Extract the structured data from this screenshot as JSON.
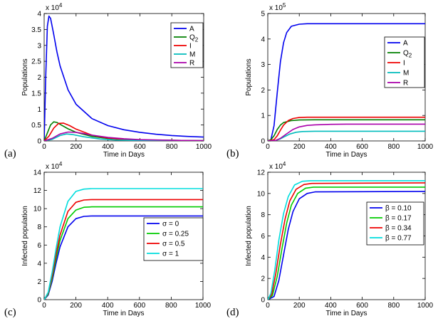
{
  "chart_data": [
    {
      "type": "line",
      "panel_label": "(a)",
      "xlabel": "Time in Days",
      "ylabel": "Populations",
      "multiplier_base": "x 10",
      "multiplier_exp": "4",
      "xlim": [
        0,
        1000
      ],
      "ylim": [
        0,
        4
      ],
      "xticks": [
        "0",
        "200",
        "400",
        "600",
        "800",
        "1000"
      ],
      "yticks": [
        "0",
        "0.5",
        "1",
        "1.5",
        "2",
        "2.5",
        "3",
        "3.5",
        "4"
      ],
      "legend_position": "top-right",
      "series": [
        {
          "name": "A",
          "name_sub": "",
          "color": "#0000ee",
          "x": [
            0,
            10,
            20,
            30,
            40,
            60,
            80,
            100,
            150,
            200,
            300,
            400,
            500,
            600,
            700,
            800,
            900,
            1000
          ],
          "y": [
            0,
            2.0,
            3.6,
            3.92,
            3.85,
            3.35,
            2.8,
            2.35,
            1.6,
            1.15,
            0.7,
            0.48,
            0.35,
            0.27,
            0.21,
            0.17,
            0.14,
            0.12
          ]
        },
        {
          "name": "Q",
          "name_sub": "2",
          "color": "#008000",
          "x": [
            0,
            20,
            40,
            60,
            80,
            100,
            150,
            200,
            300,
            400,
            500,
            600,
            800,
            1000
          ],
          "y": [
            0,
            0.25,
            0.5,
            0.6,
            0.58,
            0.52,
            0.38,
            0.27,
            0.14,
            0.08,
            0.05,
            0.03,
            0.02,
            0.01
          ]
        },
        {
          "name": "I",
          "name_sub": "",
          "color": "#ee0000",
          "x": [
            0,
            30,
            60,
            90,
            120,
            160,
            200,
            300,
            400,
            500,
            600,
            800,
            1000
          ],
          "y": [
            0,
            0.15,
            0.4,
            0.55,
            0.56,
            0.48,
            0.37,
            0.18,
            0.09,
            0.05,
            0.03,
            0.01,
            0.005
          ]
        },
        {
          "name": "M",
          "name_sub": "",
          "color": "#00bcbc",
          "x": [
            0,
            50,
            100,
            140,
            180,
            250,
            350,
            450,
            600,
            800,
            1000
          ],
          "y": [
            0,
            0.05,
            0.17,
            0.22,
            0.2,
            0.13,
            0.06,
            0.03,
            0.01,
            0.005,
            0.002
          ]
        },
        {
          "name": "R",
          "name_sub": "",
          "color": "#aa00aa",
          "x": [
            0,
            50,
            100,
            150,
            200,
            250,
            300,
            400,
            500,
            600,
            800,
            1000
          ],
          "y": [
            0,
            0.08,
            0.22,
            0.28,
            0.27,
            0.23,
            0.18,
            0.11,
            0.07,
            0.04,
            0.02,
            0.01
          ]
        }
      ]
    },
    {
      "type": "line",
      "panel_label": "(b)",
      "xlabel": "Time in Days",
      "ylabel": "Populations",
      "multiplier_base": "x 10",
      "multiplier_exp": "5",
      "xlim": [
        0,
        1000
      ],
      "ylim": [
        0,
        5
      ],
      "xticks": [
        "0",
        "200",
        "400",
        "600",
        "800",
        "1000"
      ],
      "yticks": [
        "0",
        "1",
        "2",
        "3",
        "4",
        "5"
      ],
      "legend_position": "top-right",
      "series": [
        {
          "name": "A",
          "name_sub": "",
          "color": "#0000ee",
          "x": [
            0,
            20,
            40,
            60,
            80,
            100,
            120,
            150,
            200,
            250,
            300,
            400,
            1000
          ],
          "y": [
            0,
            0.05,
            0.6,
            1.9,
            3.1,
            3.85,
            4.25,
            4.5,
            4.58,
            4.6,
            4.6,
            4.6,
            4.6
          ]
        },
        {
          "name": "Q",
          "name_sub": "2",
          "color": "#008000",
          "x": [
            0,
            20,
            40,
            60,
            80,
            100,
            150,
            200,
            300,
            1000
          ],
          "y": [
            0,
            0.05,
            0.2,
            0.45,
            0.62,
            0.72,
            0.8,
            0.82,
            0.83,
            0.83
          ]
        },
        {
          "name": "I",
          "name_sub": "",
          "color": "#ee0000",
          "x": [
            0,
            40,
            60,
            80,
            100,
            130,
            160,
            200,
            250,
            300,
            1000
          ],
          "y": [
            0,
            0.05,
            0.2,
            0.42,
            0.62,
            0.8,
            0.88,
            0.92,
            0.93,
            0.93,
            0.93
          ]
        },
        {
          "name": "M",
          "name_sub": "",
          "color": "#00bcbc",
          "x": [
            0,
            50,
            80,
            110,
            140,
            180,
            220,
            300,
            400,
            1000
          ],
          "y": [
            0,
            0.02,
            0.08,
            0.18,
            0.27,
            0.34,
            0.37,
            0.38,
            0.38,
            0.38
          ]
        },
        {
          "name": "R",
          "name_sub": "",
          "color": "#aa00aa",
          "x": [
            0,
            50,
            80,
            120,
            160,
            200,
            250,
            300,
            400,
            500,
            1000
          ],
          "y": [
            0,
            0.02,
            0.1,
            0.28,
            0.45,
            0.55,
            0.61,
            0.63,
            0.65,
            0.66,
            0.66
          ]
        }
      ]
    },
    {
      "type": "line",
      "panel_label": "(c)",
      "xlabel": "Time in Days",
      "ylabel": "Infected population",
      "multiplier_base": "x 10",
      "multiplier_exp": "4",
      "xlim": [
        0,
        1000
      ],
      "ylim": [
        0,
        14
      ],
      "xticks": [
        "0",
        "200",
        "400",
        "600",
        "800",
        "1000"
      ],
      "yticks": [
        "0",
        "2",
        "4",
        "6",
        "8",
        "10",
        "12",
        "14"
      ],
      "legend_position": "bottom-right",
      "series": [
        {
          "name": "σ = 0",
          "name_sub": "",
          "color": "#0000ee",
          "x": [
            0,
            25,
            50,
            75,
            100,
            150,
            200,
            250,
            300,
            400,
            1000
          ],
          "y": [
            0,
            0.5,
            2.0,
            4.0,
            5.8,
            8.0,
            8.9,
            9.15,
            9.2,
            9.2,
            9.2
          ]
        },
        {
          "name": "σ = 0.25",
          "name_sub": "",
          "color": "#00cc00",
          "x": [
            0,
            25,
            50,
            75,
            100,
            150,
            200,
            250,
            300,
            400,
            1000
          ],
          "y": [
            0,
            0.6,
            2.3,
            4.5,
            6.5,
            8.9,
            9.85,
            10.15,
            10.2,
            10.2,
            10.2
          ]
        },
        {
          "name": "σ = 0.5",
          "name_sub": "",
          "color": "#ee0000",
          "x": [
            0,
            25,
            50,
            75,
            100,
            150,
            200,
            250,
            300,
            400,
            1000
          ],
          "y": [
            0,
            0.7,
            2.6,
            5.0,
            7.1,
            9.7,
            10.7,
            10.95,
            11.0,
            11.0,
            11.0
          ]
        },
        {
          "name": "σ = 1",
          "name_sub": "",
          "color": "#00dddd",
          "x": [
            0,
            25,
            50,
            75,
            100,
            150,
            200,
            250,
            300,
            400,
            1000
          ],
          "y": [
            0,
            0.8,
            3.0,
            5.6,
            8.0,
            10.8,
            11.9,
            12.15,
            12.2,
            12.2,
            12.2
          ]
        }
      ]
    },
    {
      "type": "line",
      "panel_label": "(d)",
      "xlabel": "Time in Days",
      "ylabel": "Infected population",
      "multiplier_base": "x 10",
      "multiplier_exp": "4",
      "xlim": [
        0,
        1000
      ],
      "ylim": [
        0,
        12
      ],
      "xticks": [
        "0",
        "200",
        "400",
        "600",
        "800",
        "1000"
      ],
      "yticks": [
        "0",
        "2",
        "4",
        "6",
        "8",
        "10",
        "12"
      ],
      "legend_position": "center-right",
      "series": [
        {
          "name": "β = 0.10",
          "name_sub": "",
          "color": "#0000ee",
          "x": [
            0,
            40,
            70,
            100,
            130,
            160,
            200,
            250,
            300,
            1000
          ],
          "y": [
            0,
            0.3,
            1.8,
            4.2,
            6.6,
            8.3,
            9.5,
            10.0,
            10.15,
            10.2
          ]
        },
        {
          "name": "β = 0.17",
          "name_sub": "",
          "color": "#00cc00",
          "x": [
            0,
            30,
            60,
            90,
            120,
            150,
            190,
            240,
            290,
            1000
          ],
          "y": [
            0,
            0.4,
            2.2,
            4.8,
            7.2,
            8.9,
            10.0,
            10.5,
            10.6,
            10.6
          ]
        },
        {
          "name": "β = 0.34",
          "name_sub": "",
          "color": "#ee0000",
          "x": [
            0,
            25,
            50,
            80,
            110,
            140,
            180,
            230,
            280,
            1000
          ],
          "y": [
            0,
            0.5,
            2.4,
            5.2,
            7.6,
            9.3,
            10.4,
            10.85,
            10.95,
            11.0
          ]
        },
        {
          "name": "β = 0.77",
          "name_sub": "",
          "color": "#00dddd",
          "x": [
            0,
            20,
            45,
            70,
            100,
            130,
            170,
            220,
            270,
            1000
          ],
          "y": [
            0,
            0.6,
            2.8,
            5.6,
            8.1,
            9.7,
            10.8,
            11.15,
            11.2,
            11.2
          ]
        }
      ]
    }
  ]
}
